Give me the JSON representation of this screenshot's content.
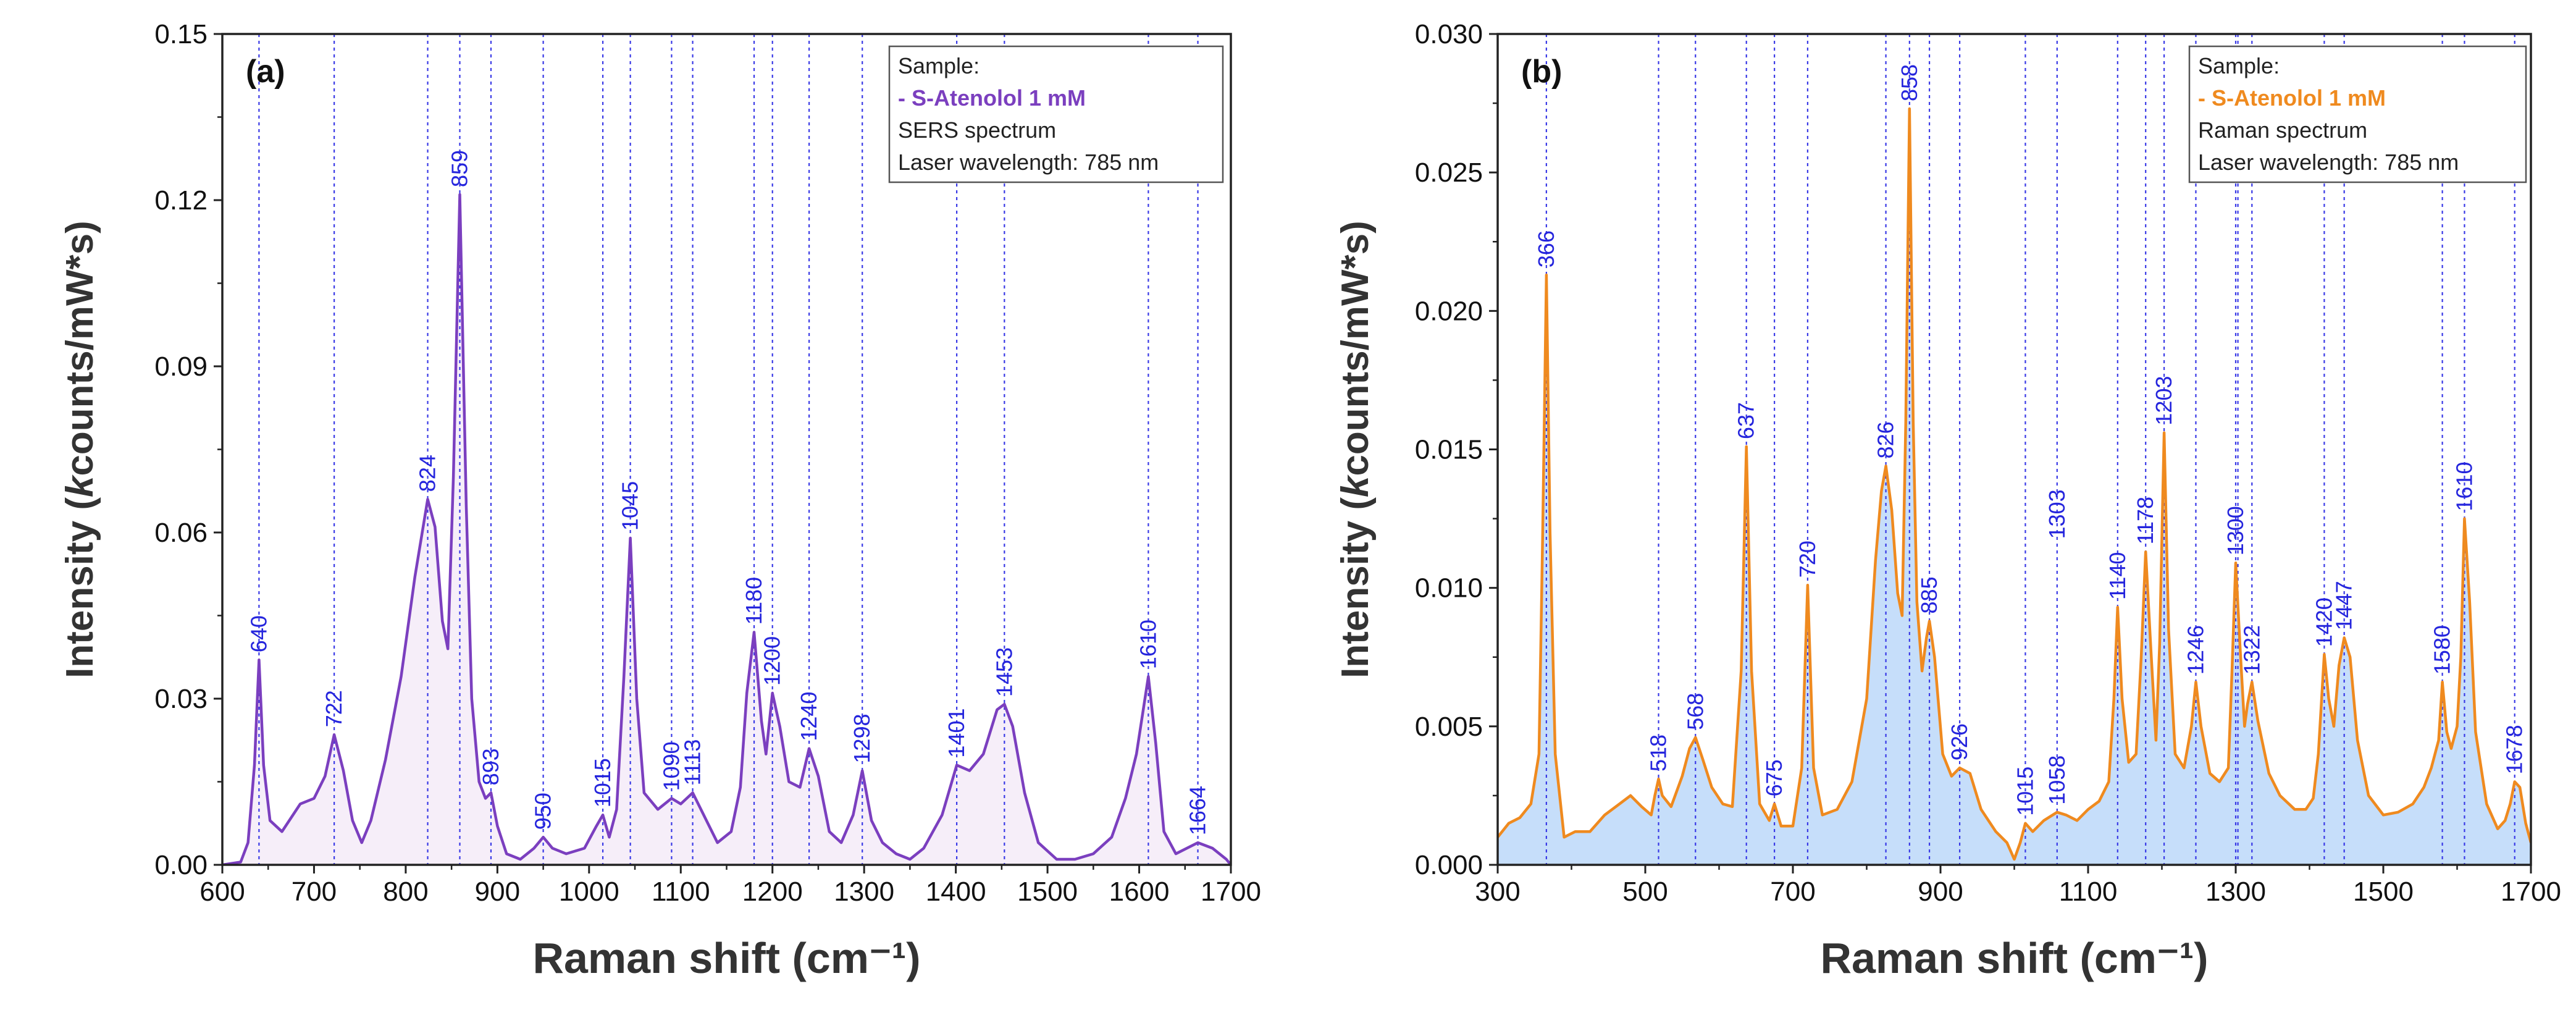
{
  "colors": {
    "peak_line": "#3a3ae6",
    "peak_label": "#2525dd",
    "axis": "#222222",
    "series_a": "#7b3fbf",
    "fill_a": "#f6eef9",
    "series_b": "#ef8a1f",
    "fill_b": "#c6defa"
  },
  "chart_data": [
    {
      "type": "line",
      "panel_label": "(a)",
      "xlabel": "Raman shift (cm⁻¹)",
      "ylabel": "Intensity (kcounts/mW*s)",
      "ylabel_parts": [
        "Intensity (",
        "k",
        "counts/mW",
        "*",
        "s)"
      ],
      "xlim": [
        600,
        1700
      ],
      "ylim": [
        0,
        0.15
      ],
      "xticks": [
        "600",
        "700",
        "800",
        "900",
        "1000",
        "1100",
        "1200",
        "1300",
        "1400",
        "1500",
        "1600",
        "1700"
      ],
      "yticks": [
        "0.00",
        "0.03",
        "0.06",
        "0.09",
        "0.12",
        "0.15"
      ],
      "legend": {
        "line1": "Sample:",
        "line2": "- S-Atenolol 1 mM",
        "line3": "SERS spectrum",
        "line4": "Laser wavelength: 785 nm"
      },
      "peaks": [
        {
          "x": 640,
          "label": "640"
        },
        {
          "x": 722,
          "label": "722"
        },
        {
          "x": 824,
          "label": "824"
        },
        {
          "x": 859,
          "label": "859"
        },
        {
          "x": 893,
          "label": "893"
        },
        {
          "x": 950,
          "label": "950"
        },
        {
          "x": 1015,
          "label": "1015"
        },
        {
          "x": 1045,
          "label": "1045"
        },
        {
          "x": 1090,
          "label": "1090"
        },
        {
          "x": 1113,
          "label": "1113"
        },
        {
          "x": 1180,
          "label": "1180"
        },
        {
          "x": 1200,
          "label": "1200"
        },
        {
          "x": 1240,
          "label": "1240"
        },
        {
          "x": 1298,
          "label": "1298"
        },
        {
          "x": 1401,
          "label": "1401"
        },
        {
          "x": 1453,
          "label": "1453"
        },
        {
          "x": 1610,
          "label": "1610"
        },
        {
          "x": 1664,
          "label": "1664"
        }
      ],
      "spectrum": {
        "x": [
          600,
          620,
          628,
          635,
          640,
          645,
          652,
          665,
          685,
          700,
          712,
          722,
          732,
          742,
          752,
          762,
          778,
          795,
          810,
          824,
          832,
          840,
          846,
          852,
          859,
          866,
          872,
          880,
          887,
          893,
          900,
          910,
          925,
          940,
          950,
          960,
          975,
          995,
          1008,
          1015,
          1022,
          1030,
          1038,
          1045,
          1052,
          1060,
          1075,
          1090,
          1100,
          1113,
          1125,
          1140,
          1155,
          1165,
          1172,
          1180,
          1188,
          1193,
          1200,
          1208,
          1218,
          1230,
          1240,
          1250,
          1262,
          1275,
          1288,
          1298,
          1308,
          1320,
          1335,
          1350,
          1365,
          1385,
          1401,
          1415,
          1430,
          1445,
          1453,
          1462,
          1475,
          1490,
          1510,
          1530,
          1550,
          1570,
          1585,
          1597,
          1610,
          1618,
          1627,
          1640,
          1652,
          1664,
          1680,
          1695,
          1700
        ],
        "y": [
          0.0,
          0.0005,
          0.004,
          0.018,
          0.037,
          0.018,
          0.008,
          0.006,
          0.011,
          0.012,
          0.016,
          0.0235,
          0.017,
          0.008,
          0.004,
          0.008,
          0.019,
          0.034,
          0.052,
          0.066,
          0.061,
          0.044,
          0.039,
          0.07,
          0.121,
          0.065,
          0.03,
          0.015,
          0.012,
          0.013,
          0.007,
          0.002,
          0.001,
          0.003,
          0.005,
          0.003,
          0.002,
          0.003,
          0.007,
          0.009,
          0.005,
          0.01,
          0.034,
          0.059,
          0.03,
          0.013,
          0.01,
          0.012,
          0.011,
          0.013,
          0.009,
          0.004,
          0.006,
          0.014,
          0.031,
          0.042,
          0.026,
          0.02,
          0.031,
          0.025,
          0.015,
          0.014,
          0.021,
          0.016,
          0.006,
          0.004,
          0.009,
          0.017,
          0.008,
          0.004,
          0.002,
          0.001,
          0.003,
          0.009,
          0.018,
          0.017,
          0.02,
          0.028,
          0.029,
          0.025,
          0.013,
          0.004,
          0.001,
          0.001,
          0.002,
          0.005,
          0.012,
          0.02,
          0.034,
          0.022,
          0.006,
          0.002,
          0.003,
          0.004,
          0.003,
          0.001,
          0.0
        ]
      }
    },
    {
      "type": "area",
      "panel_label": "(b)",
      "xlabel": "Raman shift (cm⁻¹)",
      "ylabel": "Intensity (kcounts/mW*s)",
      "ylabel_parts": [
        "Intensity (",
        "k",
        "counts/mW",
        "*",
        "s)"
      ],
      "xlim": [
        300,
        1700
      ],
      "ylim": [
        0,
        0.03
      ],
      "xticks": [
        "300",
        "500",
        "700",
        "900",
        "1100",
        "1300",
        "1500",
        "1700"
      ],
      "yticks": [
        "0.000",
        "0.005",
        "0.010",
        "0.015",
        "0.020",
        "0.025",
        "0.030"
      ],
      "legend": {
        "line1": "Sample:",
        "line2": "- S-Atenolol 1 mM",
        "line3": "Raman spectrum",
        "line4": "Laser wavelength: 785 nm"
      },
      "peaks": [
        {
          "x": 366,
          "label": "366"
        },
        {
          "x": 518,
          "label": "518"
        },
        {
          "x": 568,
          "label": "568"
        },
        {
          "x": 637,
          "label": "637"
        },
        {
          "x": 675,
          "label": "675"
        },
        {
          "x": 720,
          "label": "720"
        },
        {
          "x": 826,
          "label": "826"
        },
        {
          "x": 858,
          "label": "858"
        },
        {
          "x": 885,
          "label": "885"
        },
        {
          "x": 926,
          "label": "926"
        },
        {
          "x": 1015,
          "label": "1015"
        },
        {
          "x": 1058,
          "label": "1058"
        },
        {
          "x": 1303,
          "label": "1303",
          "label_x": 1058,
          "label_y": 0.0115
        },
        {
          "x": 1140,
          "label": "1140"
        },
        {
          "x": 1178,
          "label": "1178"
        },
        {
          "x": 1203,
          "label": "1203"
        },
        {
          "x": 1246,
          "label": "1246"
        },
        {
          "x": 1300,
          "label": "1300"
        },
        {
          "x": 1322,
          "label": "1322"
        },
        {
          "x": 1420,
          "label": "1420"
        },
        {
          "x": 1447,
          "label": "1447"
        },
        {
          "x": 1580,
          "label": "1580"
        },
        {
          "x": 1610,
          "label": "1610"
        },
        {
          "x": 1678,
          "label": "1678"
        }
      ],
      "spectrum": {
        "x": [
          300,
          315,
          330,
          345,
          356,
          361,
          366,
          371,
          378,
          390,
          405,
          425,
          445,
          465,
          480,
          495,
          508,
          513,
          518,
          523,
          535,
          550,
          560,
          568,
          578,
          590,
          605,
          618,
          630,
          637,
          644,
          655,
          668,
          675,
          684,
          700,
          712,
          720,
          728,
          740,
          760,
          780,
          800,
          812,
          820,
          826,
          834,
          842,
          848,
          853,
          858,
          863,
          868,
          875,
          881,
          885,
          892,
          903,
          915,
          926,
          940,
          955,
          975,
          990,
          1000,
          1008,
          1015,
          1025,
          1040,
          1058,
          1070,
          1085,
          1100,
          1115,
          1128,
          1135,
          1140,
          1146,
          1155,
          1165,
          1172,
          1178,
          1185,
          1192,
          1197,
          1203,
          1209,
          1218,
          1230,
          1240,
          1246,
          1253,
          1265,
          1278,
          1290,
          1295,
          1300,
          1306,
          1312,
          1316,
          1322,
          1330,
          1345,
          1360,
          1380,
          1395,
          1405,
          1412,
          1420,
          1426,
          1433,
          1440,
          1447,
          1455,
          1465,
          1480,
          1500,
          1520,
          1540,
          1555,
          1565,
          1575,
          1580,
          1586,
          1592,
          1600,
          1605,
          1610,
          1617,
          1625,
          1640,
          1655,
          1665,
          1672,
          1678,
          1685,
          1693,
          1700
        ],
        "y": [
          0.001,
          0.0015,
          0.0017,
          0.0022,
          0.004,
          0.012,
          0.0213,
          0.012,
          0.004,
          0.001,
          0.0012,
          0.0012,
          0.0018,
          0.0022,
          0.0025,
          0.0021,
          0.0018,
          0.0025,
          0.0031,
          0.0025,
          0.0021,
          0.0032,
          0.0042,
          0.0046,
          0.0038,
          0.0028,
          0.0022,
          0.0021,
          0.007,
          0.0151,
          0.007,
          0.0022,
          0.0016,
          0.0022,
          0.0014,
          0.0014,
          0.0035,
          0.0101,
          0.0035,
          0.0018,
          0.002,
          0.003,
          0.006,
          0.011,
          0.0135,
          0.0144,
          0.0128,
          0.0098,
          0.009,
          0.016,
          0.0273,
          0.016,
          0.0095,
          0.007,
          0.0082,
          0.0088,
          0.0075,
          0.004,
          0.0032,
          0.0035,
          0.0033,
          0.002,
          0.0012,
          0.0008,
          0.0002,
          0.0008,
          0.0015,
          0.0012,
          0.0016,
          0.0019,
          0.0018,
          0.0016,
          0.002,
          0.0023,
          0.003,
          0.006,
          0.0093,
          0.006,
          0.0037,
          0.004,
          0.0075,
          0.0113,
          0.0078,
          0.0045,
          0.008,
          0.0156,
          0.0085,
          0.004,
          0.0035,
          0.005,
          0.0066,
          0.005,
          0.0033,
          0.003,
          0.0035,
          0.007,
          0.0109,
          0.0078,
          0.005,
          0.0058,
          0.0066,
          0.0052,
          0.0033,
          0.0025,
          0.002,
          0.002,
          0.0024,
          0.004,
          0.0076,
          0.006,
          0.005,
          0.0072,
          0.0082,
          0.0075,
          0.0045,
          0.0025,
          0.0018,
          0.0019,
          0.0022,
          0.0028,
          0.0035,
          0.0045,
          0.0066,
          0.0048,
          0.0042,
          0.005,
          0.0075,
          0.0125,
          0.0095,
          0.0048,
          0.0022,
          0.0013,
          0.0016,
          0.0022,
          0.003,
          0.0028,
          0.0015,
          0.0008
        ]
      }
    }
  ]
}
